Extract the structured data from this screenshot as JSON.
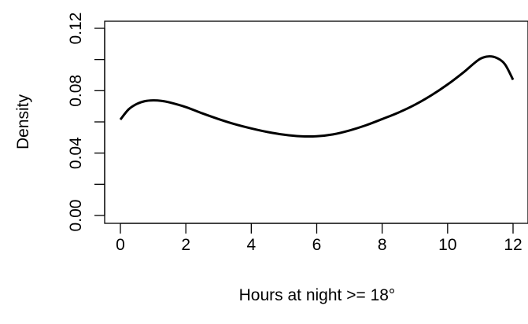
{
  "chart_data": {
    "type": "line",
    "title": "",
    "xlabel": "Hours at night  >= 18°",
    "ylabel": "Density",
    "xlim": [
      0,
      12
    ],
    "ylim": [
      0,
      0.12
    ],
    "x_ticks": [
      0,
      2,
      4,
      6,
      8,
      10,
      12
    ],
    "x_tick_labels": [
      "0",
      "2",
      "4",
      "6",
      "8",
      "10",
      "12"
    ],
    "y_ticks": [
      0,
      0.02,
      0.04,
      0.06,
      0.08,
      0.1,
      0.12
    ],
    "y_tick_labels": [
      "0.00",
      "",
      "0.04",
      "",
      "0.08",
      "",
      "0.12"
    ],
    "grid": false,
    "series": [
      {
        "x": [
          0,
          0.25,
          0.5,
          0.75,
          1.0,
          1.25,
          1.5,
          2.0,
          2.5,
          3.0,
          3.5,
          4.0,
          4.5,
          5.0,
          5.5,
          6.0,
          6.5,
          7.0,
          7.5,
          8.0,
          8.5,
          9.0,
          9.5,
          10.0,
          10.5,
          10.75,
          11.0,
          11.25,
          11.5,
          11.75,
          12.0
        ],
        "y": [
          0.0615,
          0.068,
          0.0715,
          0.0733,
          0.0738,
          0.0735,
          0.0725,
          0.0695,
          0.0655,
          0.0618,
          0.0585,
          0.0558,
          0.0535,
          0.0518,
          0.0508,
          0.0508,
          0.052,
          0.0545,
          0.0578,
          0.0618,
          0.066,
          0.071,
          0.077,
          0.084,
          0.092,
          0.0965,
          0.1005,
          0.102,
          0.101,
          0.097,
          0.087
        ],
        "color": "#000000"
      }
    ]
  }
}
